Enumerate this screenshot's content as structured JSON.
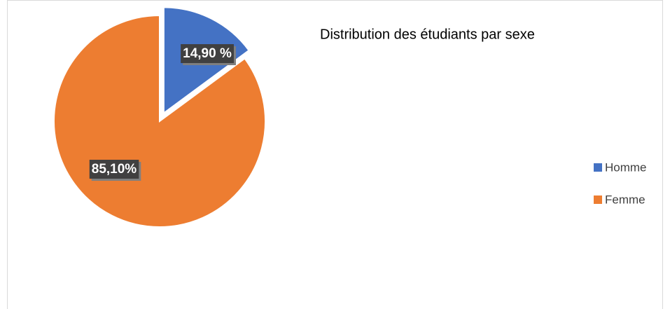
{
  "chart_data": {
    "type": "pie",
    "title": "Distribution des étudiants par sexe",
    "categories": [
      "Homme",
      "Femme"
    ],
    "values": [
      14.9,
      85.1
    ],
    "value_labels": [
      "14,90 %",
      "85,10%"
    ],
    "colors": [
      "#4472c4",
      "#ed7d31"
    ],
    "legend": "right"
  }
}
